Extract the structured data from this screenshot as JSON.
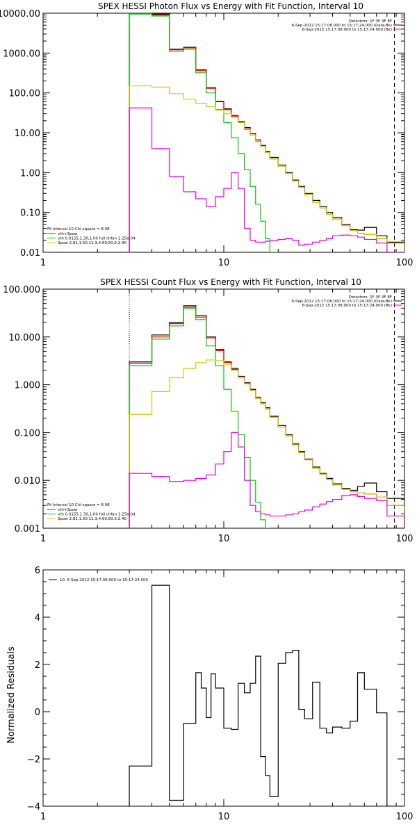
{
  "chart_data": [
    {
      "type": "line",
      "title": "SPEX HESSI Photon Flux vs Energy with Fit Function, Interval 10",
      "xlim": [
        1,
        100
      ],
      "ylim": [
        0.01,
        10000
      ],
      "xscale": "log",
      "yscale": "log",
      "x_ticks": [
        "1",
        "10",
        "100"
      ],
      "y_ticks": [
        "10000.00",
        "1000.00",
        "100.00",
        "10.00",
        "1.00",
        "0.10",
        "0.01"
      ],
      "y_tick_values": [
        10000,
        1000,
        100,
        10,
        1,
        0.1,
        0.01
      ],
      "header_lines": [
        "Detectors: 1F 3F 4F 8F",
        "6-Sep-2012 15:17:08.000 to 15:17:24.000 (Data-Bk)",
        "6-Sep-2012 15:17:08.000 to 15:17:24.000 (Bk)"
      ],
      "legend_title": "Fit Interval 10   Chi-square = 8.08",
      "legend_entries": [
        "vth+3pow",
        "vth 0.0155,1.30,1.00  full chfan 1.25e-04",
        "3pow  2.81,1.50,11.3,4.69,50.0,2.40"
      ],
      "vlines": [
        {
          "x": 3.0,
          "style": "dotted"
        },
        {
          "x": 88,
          "style": "dashed"
        }
      ],
      "bin_edges": [
        3.0,
        4.0,
        5.0,
        6.0,
        7.0,
        8.0,
        9.0,
        10.0,
        11.0,
        12.0,
        13.0,
        14.0,
        15.0,
        16.0,
        17.0,
        18.0,
        20.0,
        22.0,
        24.0,
        26.0,
        28.0,
        31.0,
        34.0,
        37.0,
        40.0,
        45.0,
        50.0,
        55.0,
        60.0,
        70.0,
        80.0,
        100.0
      ],
      "series": [
        {
          "color": "#000000",
          "values": [
            10500,
            9500,
            1250,
            1400,
            380,
            135,
            62,
            40,
            27,
            19,
            13.5,
            9.5,
            6.6,
            4.8,
            3.4,
            2.4,
            1.55,
            1.0,
            0.65,
            0.45,
            0.3,
            0.2,
            0.14,
            0.1,
            0.074,
            0.05,
            0.037,
            0.036,
            0.042,
            0.026,
            0.018
          ]
        },
        {
          "color": "#ff0000",
          "values": [
            10000,
            9000,
            1200,
            1350,
            360,
            130,
            60,
            38,
            26,
            18,
            12.5,
            8.8,
            6.0,
            4.4,
            3.2,
            2.2,
            1.45,
            0.95,
            0.62,
            0.42,
            0.28,
            0.18,
            0.13,
            0.09,
            0.068,
            0.047,
            0.035,
            0.03,
            0.028,
            0.022,
            0.017
          ]
        },
        {
          "color": "#00c800",
          "values": [
            9500,
            8500,
            1100,
            1250,
            320,
            100,
            38,
            18,
            7.5,
            3.0,
            1.2,
            0.45,
            0.16,
            0.06,
            0.022,
            0.008
          ]
        },
        {
          "color": "#d2c800",
          "values": [
            150,
            140,
            95,
            70,
            55,
            45,
            37,
            30,
            24,
            18,
            12,
            8.8,
            6.0,
            4.4,
            3.2,
            2.2,
            1.45,
            0.95,
            0.62,
            0.42,
            0.28,
            0.18,
            0.13,
            0.09,
            0.068,
            0.047,
            0.035,
            0.03,
            0.028,
            0.022,
            0.017
          ]
        },
        {
          "color": "#e600e6",
          "values": [
            42,
            4,
            0.8,
            0.33,
            0.22,
            0.14,
            0.25,
            0.4,
            1.0,
            0.4,
            0.04,
            0.02,
            0.018,
            0.018,
            0.019,
            0.02,
            0.021,
            0.022,
            0.02,
            0.015,
            0.016,
            0.018,
            0.02,
            0.022,
            0.026,
            0.027,
            0.026,
            0.024,
            0.021,
            0.017,
            0.01
          ]
        }
      ]
    },
    {
      "type": "line",
      "title": "SPEX HESSI Count Flux vs Energy with Fit Function, Interval 10",
      "xlim": [
        1,
        100
      ],
      "ylim": [
        0.001,
        100
      ],
      "xscale": "log",
      "yscale": "log",
      "x_ticks": [
        "1",
        "10",
        "100"
      ],
      "y_ticks": [
        "100.000",
        "10.000",
        "1.000",
        "0.100",
        "0.010",
        "0.001"
      ],
      "y_tick_values": [
        100,
        10,
        1,
        0.1,
        0.01,
        0.001
      ],
      "header_lines": [
        "Detectors: 1F 3F 4F 8F",
        "6-Sep-2012 15:17:08.000 to 15:17:24.000 (Data-Bk)",
        "6-Sep-2012 15:17:08.000 to 15:17:24.000 (Bk)"
      ],
      "legend_title": "Fit Interval 10   Chi-square = 8.08",
      "legend_entries": [
        "vth+3pow",
        "vth 0.0155,1.30,1.00  full chfan 1.25e-04",
        "3pow  2.81,1.50,11.3,4.69,50.0,2.40"
      ],
      "vlines": [
        {
          "x": 3.0,
          "style": "dotted"
        },
        {
          "x": 88,
          "style": "dashed"
        }
      ],
      "bin_edges": [
        3.0,
        4.0,
        5.0,
        6.0,
        7.0,
        8.0,
        9.0,
        10.0,
        11.0,
        12.0,
        13.0,
        14.0,
        15.0,
        16.0,
        17.0,
        18.0,
        20.0,
        22.0,
        24.0,
        26.0,
        28.0,
        31.0,
        34.0,
        37.0,
        40.0,
        45.0,
        50.0,
        55.0,
        60.0,
        70.0,
        80.0,
        100.0
      ],
      "series": [
        {
          "color": "#000000",
          "values": [
            3.0,
            11,
            20,
            45,
            28,
            10,
            5.5,
            3.0,
            2.2,
            1.5,
            1.1,
            0.8,
            0.55,
            0.42,
            0.33,
            0.22,
            0.14,
            0.09,
            0.058,
            0.04,
            0.028,
            0.019,
            0.014,
            0.011,
            0.0085,
            0.0068,
            0.0062,
            0.0075,
            0.0088,
            0.0058,
            0.0042
          ]
        },
        {
          "color": "#ff0000",
          "values": [
            2.8,
            10,
            19,
            42,
            26,
            9.5,
            5.2,
            2.9,
            2.1,
            1.4,
            1.05,
            0.76,
            0.52,
            0.4,
            0.31,
            0.21,
            0.13,
            0.085,
            0.055,
            0.038,
            0.027,
            0.018,
            0.0135,
            0.0105,
            0.008,
            0.0065,
            0.0058,
            0.0055,
            0.0052,
            0.0045,
            0.003
          ]
        },
        {
          "color": "#00c800",
          "values": [
            2.5,
            9,
            17,
            40,
            23,
            6.5,
            2.5,
            0.8,
            0.28,
            0.09,
            0.03,
            0.01,
            0.0035,
            0.0015,
            0.0008
          ]
        },
        {
          "color": "#d2c800",
          "values": [
            0.24,
            0.72,
            1.4,
            2.2,
            2.9,
            3.3,
            3.2,
            2.6,
            2.0,
            1.4,
            1.05,
            0.76,
            0.52,
            0.4,
            0.31,
            0.21,
            0.13,
            0.085,
            0.055,
            0.038,
            0.027,
            0.018,
            0.0135,
            0.0105,
            0.008,
            0.0065,
            0.0058,
            0.0055,
            0.0052,
            0.0045,
            0.003
          ]
        },
        {
          "color": "#e600e6",
          "values": [
            0.014,
            0.012,
            0.0095,
            0.01,
            0.011,
            0.013,
            0.022,
            0.04,
            0.1,
            0.05,
            0.01,
            0.003,
            0.0022,
            0.002,
            0.0019,
            0.0018,
            0.0018,
            0.0019,
            0.002,
            0.0022,
            0.0024,
            0.0028,
            0.0032,
            0.0036,
            0.004,
            0.0048,
            0.005,
            0.0046,
            0.0042,
            0.0038,
            0.0018
          ]
        }
      ]
    },
    {
      "type": "line",
      "title": "",
      "xlim": [
        1,
        100
      ],
      "ylim": [
        -4,
        6
      ],
      "xscale": "log",
      "yscale": "linear",
      "x_ticks": [
        "1",
        "10",
        "100"
      ],
      "y_ticks": [
        "6",
        "4",
        "2",
        "0",
        "−2",
        "−4"
      ],
      "y_tick_values": [
        6,
        4,
        2,
        0,
        -2,
        -4
      ],
      "ylabel": "Normalized Residuals",
      "legend_entries": [
        "10.  6-Sep-2012 15:17:08.000 to 15:17:24.000"
      ],
      "bin_edges": [
        3.0,
        4.0,
        5.0,
        6.0,
        7.0,
        7.5,
        8.0,
        8.5,
        9.0,
        10.0,
        11.0,
        12.0,
        13.0,
        14.0,
        15.0,
        16.0,
        17.0,
        18.0,
        20.0,
        22.0,
        24.0,
        26.0,
        28.0,
        31.0,
        34.0,
        37.0,
        40.0,
        45.0,
        50.0,
        55.0,
        60.0,
        70.0,
        80.0,
        90.0
      ],
      "series": [
        {
          "color": "#000000",
          "values": [
            -2.3,
            5.35,
            -3.75,
            -0.5,
            1.65,
            1.0,
            -0.25,
            1.6,
            1.0,
            -0.7,
            -0.75,
            1.2,
            0.8,
            1.2,
            2.35,
            -1.9,
            -2.7,
            -3.6,
            2.05,
            2.5,
            2.6,
            0.1,
            -0.3,
            1.25,
            -0.7,
            -0.9,
            -0.65,
            -0.7,
            -0.4,
            1.65,
            0.95,
            -0.05,
            -4.0
          ]
        }
      ]
    }
  ]
}
